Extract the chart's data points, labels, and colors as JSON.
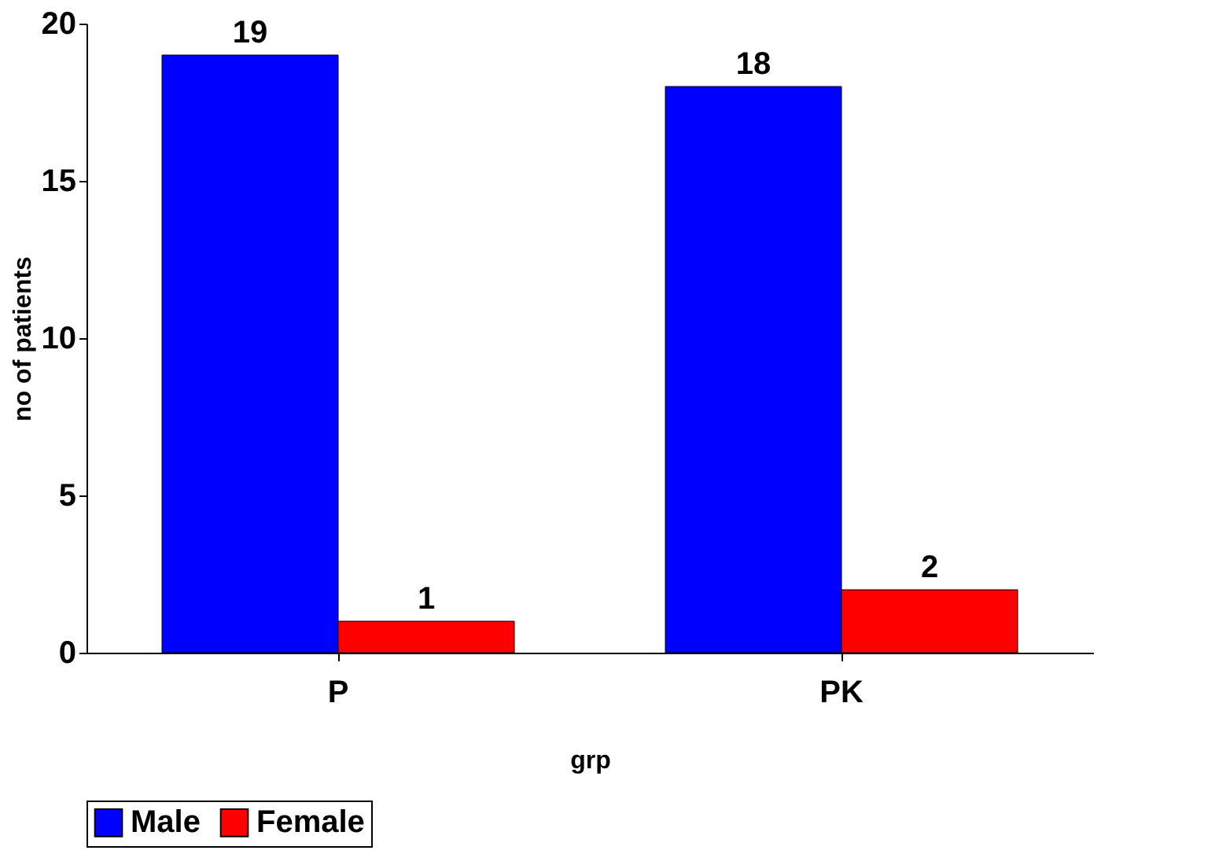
{
  "chart_data": {
    "type": "bar",
    "xlabel": "grp",
    "ylabel": "no of patients",
    "categories": [
      "P",
      "PK"
    ],
    "series": [
      {
        "name": "Male",
        "color": "#0000ff",
        "values": [
          19,
          18
        ]
      },
      {
        "name": "Female",
        "color": "#ff0000",
        "values": [
          1,
          2
        ]
      }
    ],
    "ylim": [
      0,
      20
    ],
    "yticks": [
      0,
      5,
      10,
      15,
      20
    ],
    "grid": false,
    "legend": "bottom",
    "data_labels": true
  }
}
